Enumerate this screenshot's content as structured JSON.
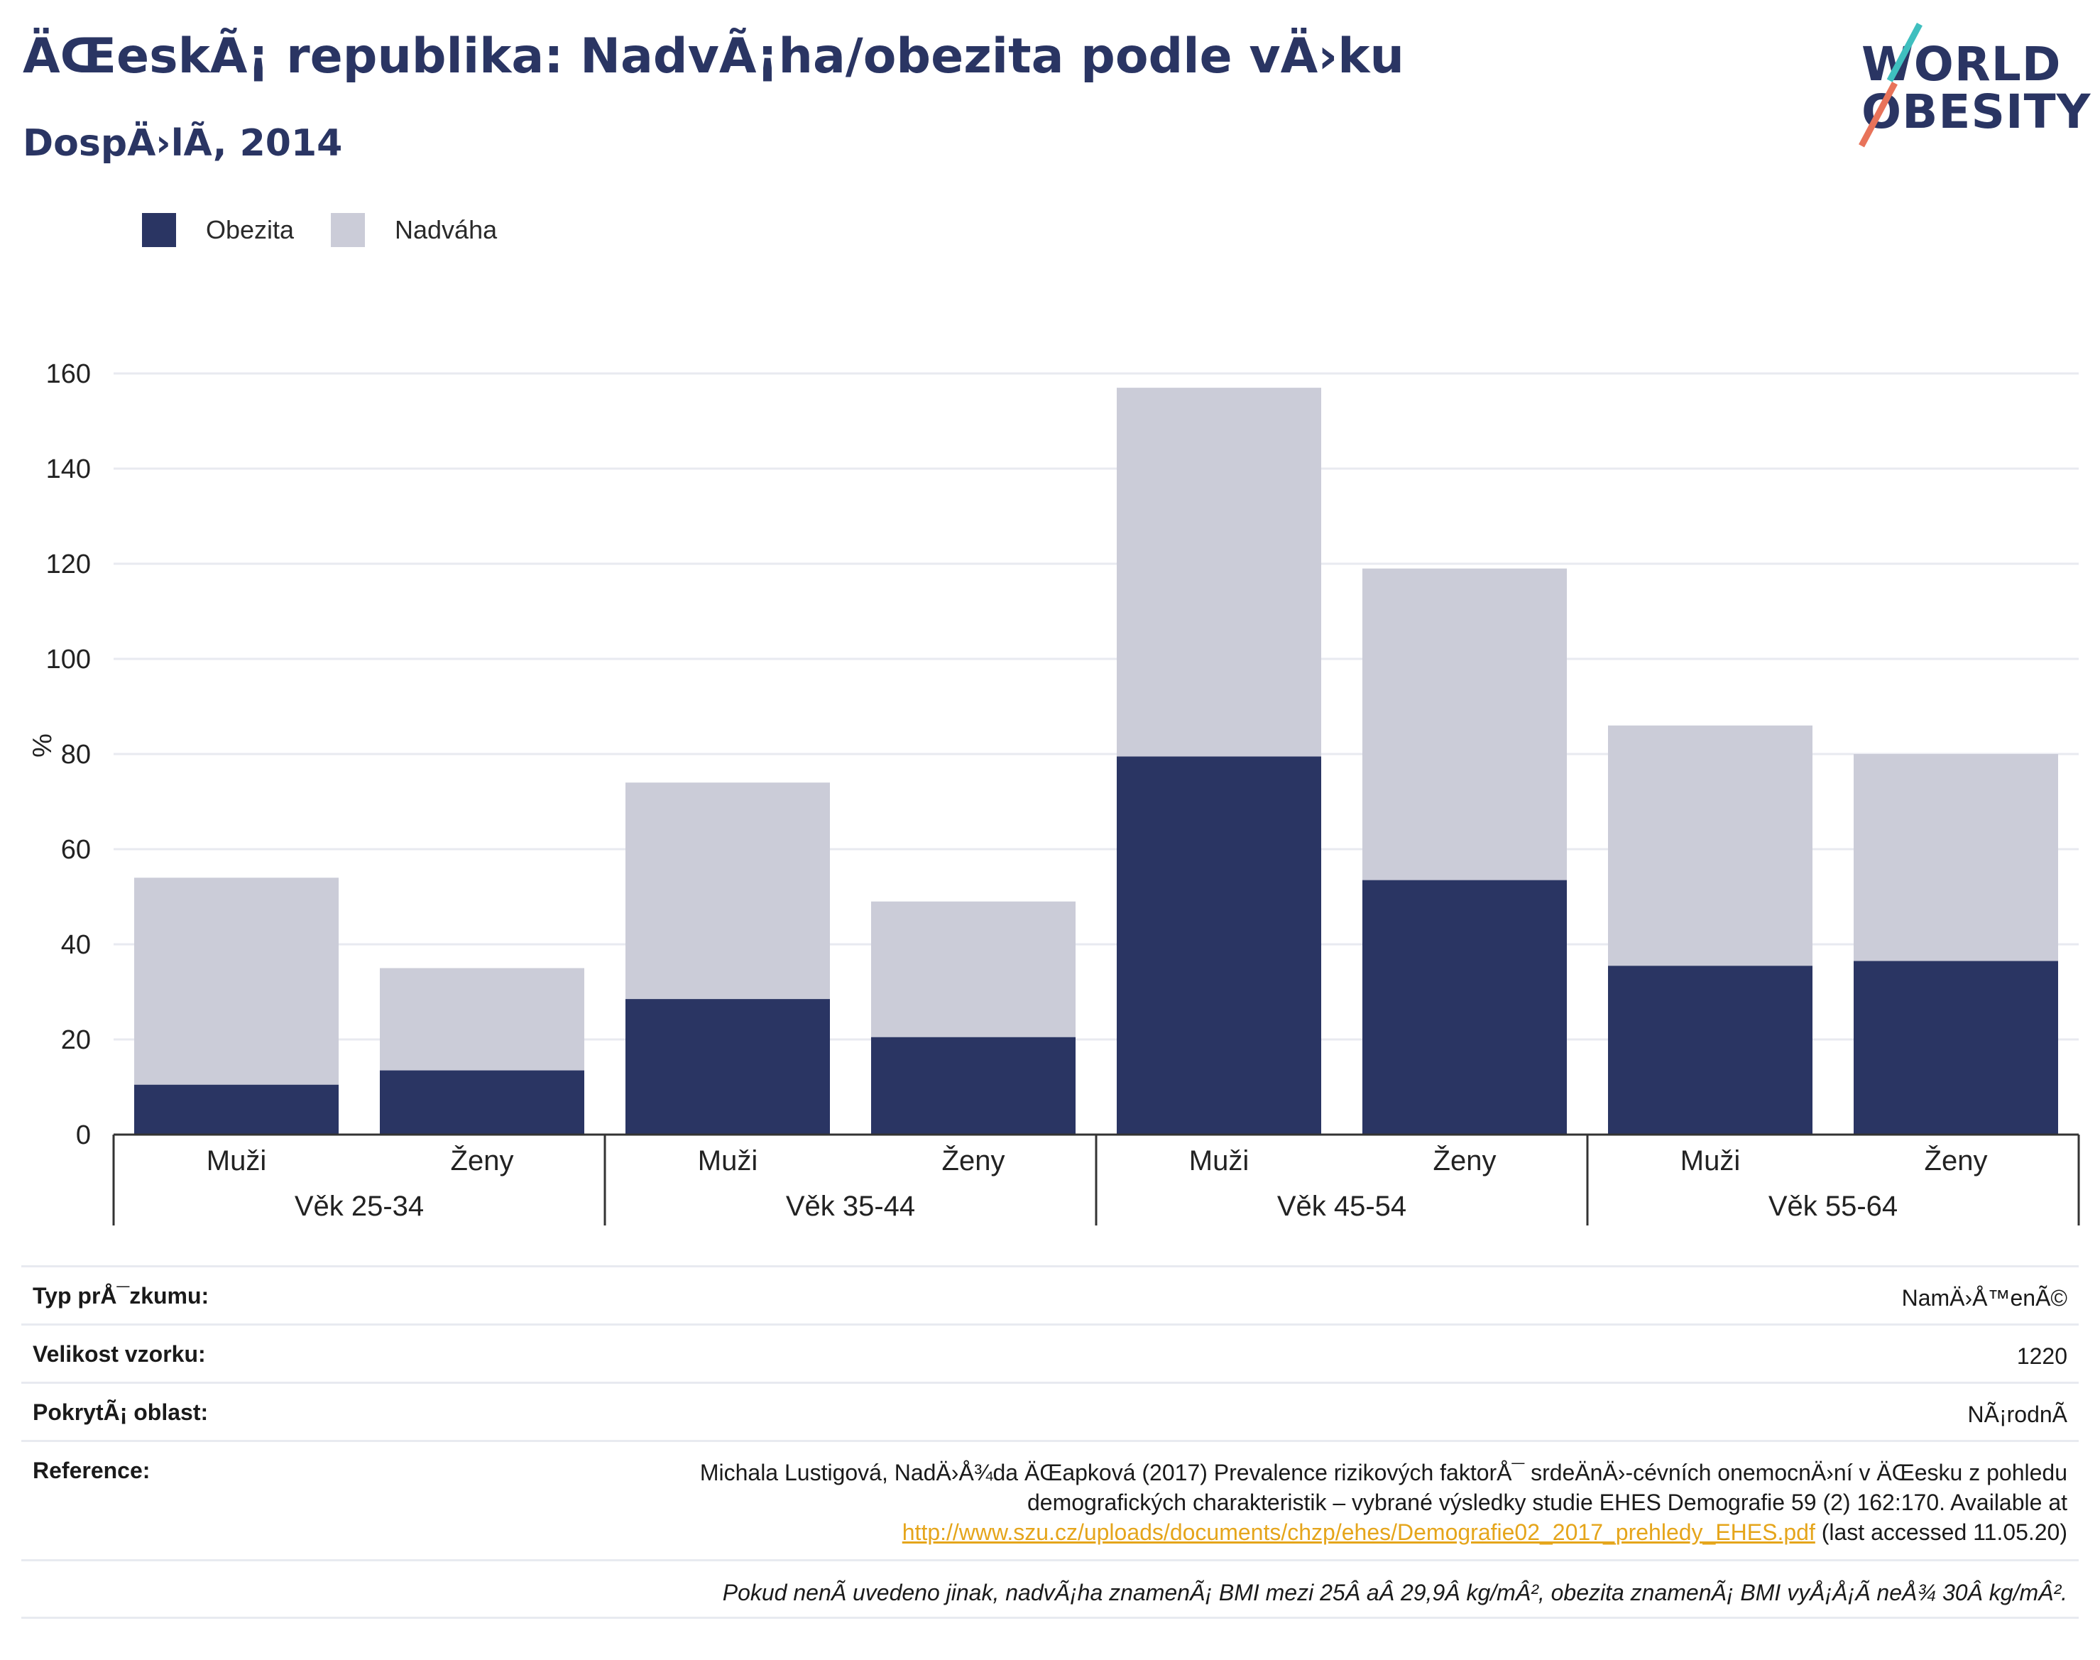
{
  "header": {
    "title": "ÄŒeskÃ¡ republika: NadvÃ¡ha/obezita podle vÄ›ku",
    "subtitle": "DospÄ›lÃ, 2014"
  },
  "logo": {
    "line1": "WORLD",
    "line2": "OBESITY"
  },
  "colors": {
    "obesity": "#2a3563",
    "overweight": "#cbccd8",
    "grid": "#e8eaf0",
    "axis": "#333333"
  },
  "chart_data": {
    "type": "bar",
    "stacked": true,
    "ylabel": "%",
    "ylim": [
      0,
      160
    ],
    "yticks": [
      0,
      20,
      40,
      60,
      80,
      100,
      120,
      140,
      160
    ],
    "grid": true,
    "legend_position": "top-left",
    "groups": [
      {
        "label": "Věk 25-34",
        "categories": [
          "Muži",
          "Ženy"
        ]
      },
      {
        "label": "Věk 35-44",
        "categories": [
          "Muži",
          "Ženy"
        ]
      },
      {
        "label": "Věk 45-54",
        "categories": [
          "Muži",
          "Ženy"
        ]
      },
      {
        "label": "Věk 55-64",
        "categories": [
          "Muži",
          "Ženy"
        ]
      }
    ],
    "series": [
      {
        "name": "Obezita",
        "values": [
          10.5,
          13.5,
          28.5,
          20.5,
          79.5,
          53.5,
          35.5,
          36.5
        ]
      },
      {
        "name": "Nadváha",
        "values": [
          43.5,
          21.5,
          45.5,
          28.5,
          77.5,
          65.5,
          50.5,
          43.5
        ]
      }
    ]
  },
  "info": {
    "rows": [
      {
        "key": "Typ prÅ¯zkumu:",
        "value": "NamÄ›Å™enÃ©"
      },
      {
        "key": "Velikost vzorku:",
        "value": "1220"
      },
      {
        "key": "PokrytÃ¡ oblast:",
        "value": "NÃ¡rodnÃ"
      }
    ],
    "reference": {
      "key": "Reference:",
      "line1": "Michala Lustigová, NadÄ›Å¾da ÄŒapková (2017) Prevalence rizikových faktorÅ¯ srdeÄnÄ›-cévních onemocnÄ›ní v ÄŒesku z pohledu",
      "line2": "demografických charakteristik – vybrané výsledky studie EHES Demografie 59 (2) 162:170. Available at",
      "link": "http://www.szu.cz/uploads/documents/chzp/ehes/Demografie02_2017_prehledy_EHES.pdf",
      "suffix": " (last accessed 11.05.20)"
    },
    "note": "Pokud nenÃ uvedeno jinak, nadvÃ¡ha znamenÃ¡ BMI mezi 25Â aÂ 29,9Â kg/mÂ², obezita znamenÃ¡ BMI vyÅ¡Å¡Ã neÅ¾ 30Â kg/mÂ²."
  }
}
